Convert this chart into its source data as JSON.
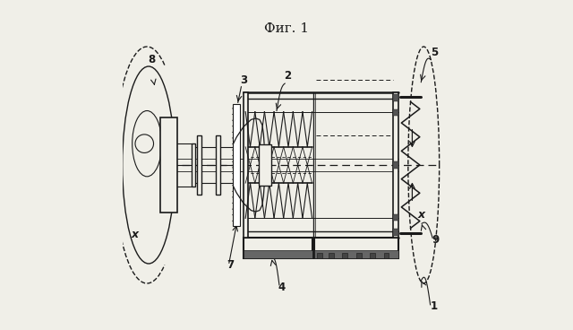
{
  "fig_width": 6.4,
  "fig_height": 3.68,
  "dpi": 100,
  "bg_color": "#f0efe8",
  "line_color": "#1a1a1a",
  "title": "Фиг. 1"
}
